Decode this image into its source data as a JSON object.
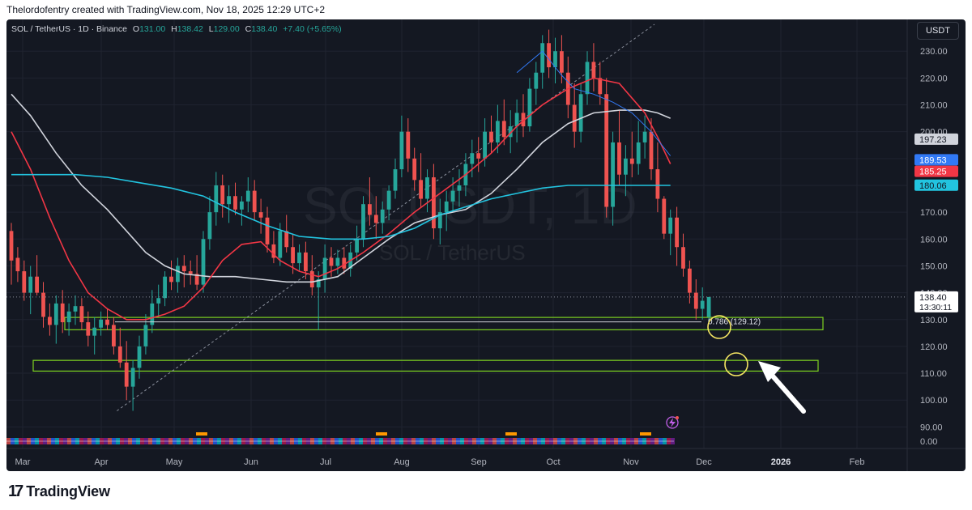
{
  "header": {
    "attribution": "Thelordofentry created with TradingView.com, Nov 18, 2025 12:29 UTC+2"
  },
  "legend": {
    "symbol": "SOL / TetherUS · 1D · Binance",
    "o_label": "O",
    "o_value": "131.00",
    "h_label": "H",
    "h_value": "138.42",
    "l_label": "L",
    "l_value": "129.00",
    "c_label": "C",
    "c_value": "138.40",
    "change": "+7.40 (+5.65%)"
  },
  "watermark": {
    "main": "SOLUSDT, 1D",
    "sub": "SOL / TetherUS"
  },
  "currency_button": "USDT",
  "footer": {
    "logo_text": "TradingView"
  },
  "colors": {
    "background": "#141822",
    "up": "#26a69a",
    "down": "#ef5350",
    "ma_white": "#d1d4dc",
    "ma_red": "#f23645",
    "ma_cyan": "#22c4e0",
    "ma_blue": "#3179f5",
    "zone": "#7ed321",
    "circle": "#f5e663"
  },
  "chart_data": {
    "type": "candlestick",
    "y_ticks": [
      "230.00",
      "220.00",
      "210.00",
      "200.00",
      "190.00",
      "180.00",
      "170.00",
      "160.00",
      "150.00",
      "140.00",
      "130.00",
      "120.00",
      "110.00",
      "100.00",
      "90.00"
    ],
    "x_ticks": [
      "Mar",
      "Apr",
      "May",
      "Jun",
      "Jul",
      "Aug",
      "Sep",
      "Oct",
      "Nov",
      "Dec",
      "2026",
      "Feb"
    ],
    "ylim": [
      88,
      237
    ],
    "last_price": {
      "value": 138.4,
      "label": "138.40",
      "countdown": "13:30:11"
    },
    "price_labels": [
      {
        "label": "197.23",
        "value": 197.23,
        "color": "#d1d4dc",
        "text_color": "#131722"
      },
      {
        "label": "189.53",
        "value": 189.53,
        "color": "#3179f5",
        "text_color": "#ffffff"
      },
      {
        "label": "185.25",
        "value": 185.25,
        "color": "#f23645",
        "text_color": "#ffffff"
      },
      {
        "label": "180.06",
        "value": 180.06,
        "color": "#22c4e0",
        "text_color": "#131722"
      }
    ],
    "fib_label": "0.786 (129.12)",
    "fib_value": 129.12,
    "zones": [
      {
        "top": 130.8,
        "bottom": 126.2
      },
      {
        "top": 114.8,
        "bottom": 110.8
      }
    ],
    "oscillator_label": "0.00",
    "candles": [
      [
        163,
        166,
        143,
        152
      ],
      [
        153,
        157,
        144,
        148
      ],
      [
        148,
        152,
        137,
        140
      ],
      [
        140,
        150,
        132,
        146
      ],
      [
        146,
        154,
        139,
        140
      ],
      [
        140,
        144,
        127,
        131
      ],
      [
        131,
        136,
        124,
        128
      ],
      [
        128,
        139,
        121,
        136
      ],
      [
        136,
        141,
        125,
        129
      ],
      [
        129,
        136,
        124,
        133
      ],
      [
        133,
        139,
        128,
        135
      ],
      [
        135,
        138,
        126,
        129
      ],
      [
        129,
        133,
        120,
        124
      ],
      [
        124,
        131,
        117,
        127
      ],
      [
        127,
        133,
        124,
        130
      ],
      [
        130,
        134,
        126,
        128
      ],
      [
        128,
        131,
        117,
        120
      ],
      [
        120,
        127,
        112,
        114
      ],
      [
        114,
        122,
        100,
        105
      ],
      [
        105,
        115,
        96,
        112
      ],
      [
        112,
        124,
        108,
        120
      ],
      [
        120,
        132,
        117,
        128
      ],
      [
        128,
        141,
        125,
        136
      ],
      [
        136,
        143,
        131,
        138
      ],
      [
        138,
        148,
        135,
        146
      ],
      [
        146,
        152,
        141,
        144
      ],
      [
        144,
        153,
        140,
        150
      ],
      [
        150,
        154,
        142,
        148
      ],
      [
        148,
        152,
        143,
        147
      ],
      [
        147,
        154,
        141,
        143
      ],
      [
        143,
        163,
        140,
        160
      ],
      [
        160,
        176,
        156,
        170
      ],
      [
        170,
        185,
        165,
        180
      ],
      [
        180,
        184,
        168,
        173
      ],
      [
        173,
        180,
        166,
        176
      ],
      [
        176,
        181,
        169,
        171
      ],
      [
        171,
        176,
        165,
        174
      ],
      [
        174,
        183,
        170,
        178
      ],
      [
        178,
        182,
        167,
        170
      ],
      [
        170,
        175,
        162,
        168
      ],
      [
        168,
        172,
        155,
        158
      ],
      [
        158,
        163,
        151,
        153
      ],
      [
        153,
        166,
        150,
        163
      ],
      [
        163,
        169,
        155,
        157
      ],
      [
        157,
        162,
        147,
        151
      ],
      [
        151,
        158,
        148,
        155
      ],
      [
        155,
        159,
        145,
        148
      ],
      [
        148,
        154,
        139,
        142
      ],
      [
        142,
        148,
        126,
        145
      ],
      [
        145,
        158,
        140,
        153
      ],
      [
        153,
        157,
        146,
        150
      ],
      [
        150,
        156,
        147,
        153
      ],
      [
        153,
        157,
        147,
        149
      ],
      [
        149,
        158,
        146,
        155
      ],
      [
        155,
        165,
        152,
        160
      ],
      [
        160,
        176,
        157,
        173
      ],
      [
        173,
        183,
        165,
        169
      ],
      [
        169,
        176,
        160,
        166
      ],
      [
        166,
        174,
        162,
        171
      ],
      [
        171,
        180,
        167,
        178
      ],
      [
        178,
        190,
        175,
        186
      ],
      [
        186,
        206,
        183,
        200
      ],
      [
        200,
        205,
        185,
        190
      ],
      [
        190,
        194,
        178,
        182
      ],
      [
        182,
        192,
        172,
        175
      ],
      [
        175,
        186,
        170,
        183
      ],
      [
        183,
        188,
        160,
        164
      ],
      [
        164,
        175,
        158,
        170
      ],
      [
        170,
        178,
        163,
        174
      ],
      [
        174,
        183,
        170,
        178
      ],
      [
        178,
        186,
        172,
        180
      ],
      [
        180,
        192,
        176,
        188
      ],
      [
        188,
        197,
        183,
        192
      ],
      [
        192,
        198,
        185,
        190
      ],
      [
        190,
        205,
        187,
        200
      ],
      [
        200,
        206,
        192,
        196
      ],
      [
        196,
        210,
        192,
        204
      ],
      [
        204,
        212,
        195,
        198
      ],
      [
        198,
        208,
        192,
        202
      ],
      [
        202,
        212,
        196,
        207
      ],
      [
        207,
        214,
        198,
        202
      ],
      [
        202,
        220,
        200,
        216
      ],
      [
        216,
        226,
        210,
        222
      ],
      [
        222,
        236,
        216,
        233
      ],
      [
        233,
        238,
        220,
        224
      ],
      [
        224,
        235,
        218,
        230
      ],
      [
        230,
        236,
        218,
        222
      ],
      [
        222,
        228,
        205,
        210
      ],
      [
        210,
        218,
        194,
        200
      ],
      [
        200,
        218,
        196,
        214
      ],
      [
        214,
        230,
        210,
        226
      ],
      [
        226,
        233,
        215,
        220
      ],
      [
        220,
        226,
        210,
        214
      ],
      [
        214,
        220,
        168,
        172
      ],
      [
        172,
        200,
        165,
        196
      ],
      [
        196,
        208,
        180,
        184
      ],
      [
        184,
        195,
        176,
        190
      ],
      [
        190,
        200,
        183,
        188
      ],
      [
        188,
        204,
        184,
        196
      ],
      [
        196,
        206,
        190,
        200
      ],
      [
        200,
        205,
        182,
        186
      ],
      [
        186,
        196,
        170,
        175
      ],
      [
        175,
        176,
        160,
        162
      ],
      [
        162,
        171,
        154,
        168
      ],
      [
        168,
        172,
        150,
        157
      ],
      [
        157,
        162,
        146,
        149
      ],
      [
        149,
        152,
        136,
        140
      ],
      [
        140,
        145,
        130,
        134
      ],
      [
        134,
        142,
        130,
        137
      ],
      [
        131,
        138.4,
        129,
        138.4
      ]
    ],
    "ma_series": [
      {
        "color": "#d1d4dc",
        "points": [
          [
            0,
            214
          ],
          [
            3,
            206
          ],
          [
            7,
            192
          ],
          [
            11,
            180
          ],
          [
            15,
            171
          ],
          [
            18,
            163
          ],
          [
            21,
            155
          ],
          [
            24,
            150
          ],
          [
            27,
            147
          ],
          [
            31,
            146
          ],
          [
            35,
            146
          ],
          [
            39,
            145
          ],
          [
            43,
            144
          ],
          [
            47,
            144
          ],
          [
            51,
            146
          ],
          [
            55,
            153
          ],
          [
            59,
            160
          ],
          [
            63,
            166
          ],
          [
            67,
            169
          ],
          [
            71,
            171
          ],
          [
            75,
            177
          ],
          [
            79,
            186
          ],
          [
            83,
            196
          ],
          [
            87,
            203
          ],
          [
            91,
            207
          ],
          [
            95,
            208
          ],
          [
            99,
            208
          ],
          [
            101,
            207
          ],
          [
            103,
            205
          ]
        ]
      },
      {
        "color": "#f23645",
        "points": [
          [
            0,
            200
          ],
          [
            3,
            186
          ],
          [
            6,
            168
          ],
          [
            9,
            152
          ],
          [
            12,
            140
          ],
          [
            15,
            134
          ],
          [
            18,
            130
          ],
          [
            21,
            130
          ],
          [
            24,
            132
          ],
          [
            27,
            135
          ],
          [
            30,
            142
          ],
          [
            33,
            152
          ],
          [
            36,
            158
          ],
          [
            39,
            159
          ],
          [
            42,
            152
          ],
          [
            45,
            148
          ],
          [
            48,
            146
          ],
          [
            51,
            149
          ],
          [
            55,
            155
          ],
          [
            59,
            162
          ],
          [
            63,
            170
          ],
          [
            67,
            177
          ],
          [
            71,
            184
          ],
          [
            75,
            192
          ],
          [
            79,
            202
          ],
          [
            83,
            210
          ],
          [
            87,
            216
          ],
          [
            91,
            220
          ],
          [
            95,
            218
          ],
          [
            99,
            207
          ],
          [
            101,
            198
          ],
          [
            103,
            188
          ]
        ]
      },
      {
        "color": "#22c4e0",
        "points": [
          [
            0,
            184
          ],
          [
            5,
            184
          ],
          [
            10,
            184
          ],
          [
            15,
            183
          ],
          [
            20,
            181
          ],
          [
            25,
            179
          ],
          [
            30,
            176
          ],
          [
            35,
            170
          ],
          [
            40,
            165
          ],
          [
            45,
            161
          ],
          [
            50,
            160
          ],
          [
            55,
            160
          ],
          [
            59,
            161
          ],
          [
            63,
            164
          ],
          [
            67,
            169
          ],
          [
            71,
            172
          ],
          [
            75,
            175
          ],
          [
            79,
            177
          ],
          [
            83,
            179
          ],
          [
            87,
            180
          ],
          [
            91,
            180
          ],
          [
            95,
            180
          ],
          [
            99,
            180
          ],
          [
            103,
            180
          ]
        ]
      },
      {
        "color": "#3179f5",
        "points": [
          [
            79,
            222
          ],
          [
            81,
            226
          ],
          [
            83,
            230
          ],
          [
            86,
            221
          ],
          [
            88,
            216
          ],
          [
            91,
            214
          ],
          [
            94,
            211
          ],
          [
            97,
            207
          ],
          [
            100,
            200
          ],
          [
            103,
            191
          ]
        ]
      }
    ],
    "trendline": {
      "from": [
        17,
        96
      ],
      "to": [
        103,
        240
      ]
    }
  }
}
